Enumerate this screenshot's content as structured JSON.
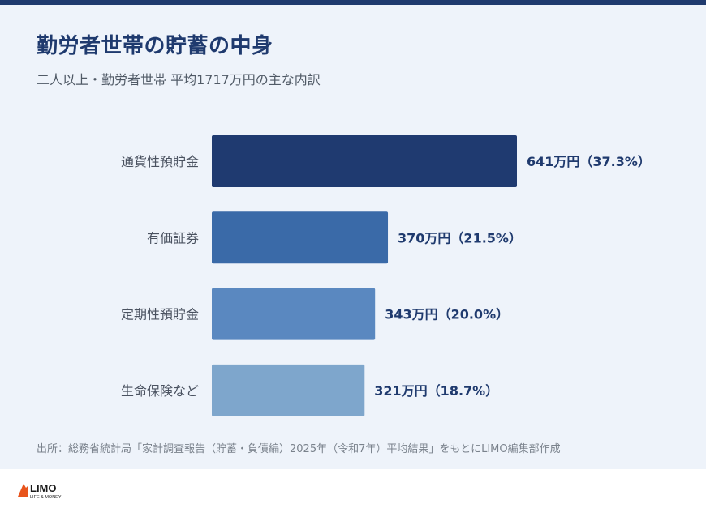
{
  "title": "勤労者世帯の貯蓄の中身",
  "subtitle": "二人以上・勤労者世帯 平均1717万円の主な内訳",
  "source": "出所：総務省統計局「家計調査報告（貯蓄・負債編）2025年（令和7年）平均結果」をもとにLIMO編集部作成",
  "logo": {
    "name": "LIMO",
    "tagline": "LIFE & MONEY"
  },
  "colors": {
    "header_bar": "#1f3a6e",
    "background": "#eef3fa",
    "label_text": "#1f3a6e"
  },
  "chart_data": {
    "type": "bar",
    "orientation": "horizontal",
    "unit": "万円",
    "total": 1717,
    "categories": [
      "通貨性預貯金",
      "有価証券",
      "定期性預貯金",
      "生命保険など"
    ],
    "values": [
      641,
      370,
      343,
      321
    ],
    "shares": [
      "37.3%",
      "21.5%",
      "20.0%",
      "18.7%"
    ],
    "labels": [
      "641万円（37.3%）",
      "370万円（21.5%）",
      "343万円（20.0%）",
      "321万円（18.7%）"
    ],
    "bar_colors": [
      "#1f3a70",
      "#3a6aa8",
      "#5a88c0",
      "#7ea6cc"
    ],
    "xlim": [
      0,
      641
    ]
  }
}
